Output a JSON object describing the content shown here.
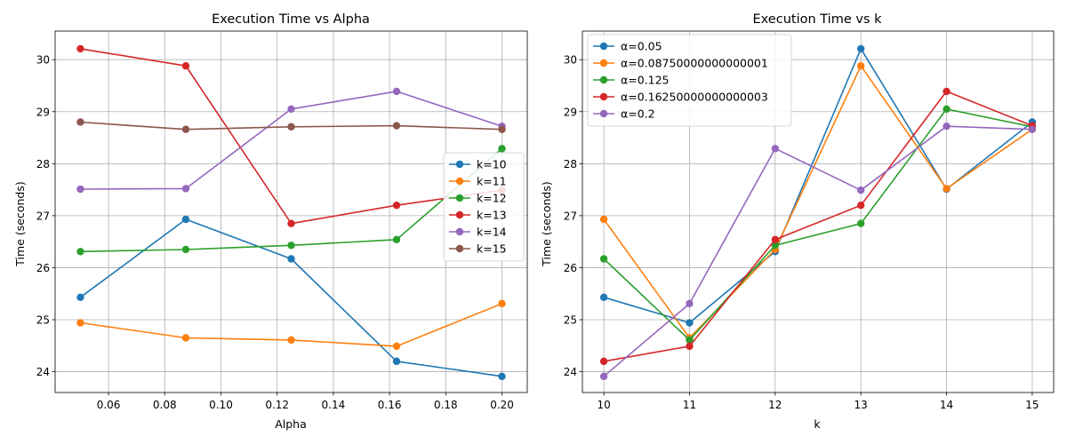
{
  "chart_data": [
    {
      "type": "line",
      "title": "Execution Time vs Alpha",
      "xlabel": "Alpha",
      "ylabel": "Time (seconds)",
      "xlim": [
        0.041,
        0.209
      ],
      "ylim": [
        23.6,
        30.55
      ],
      "xticks": [
        0.06,
        0.08,
        0.1,
        0.12,
        0.14,
        0.16,
        0.18,
        0.2
      ],
      "xtick_labels": [
        "0.06",
        "0.08",
        "0.10",
        "0.12",
        "0.14",
        "0.16",
        "0.18",
        "0.20"
      ],
      "yticks": [
        24,
        25,
        26,
        27,
        28,
        29,
        30
      ],
      "ytick_labels": [
        "24",
        "25",
        "26",
        "27",
        "28",
        "29",
        "30"
      ],
      "grid": true,
      "legend_position": "center-right",
      "x": [
        0.05,
        0.0875,
        0.125,
        0.1625,
        0.2
      ],
      "series": [
        {
          "name": "k=10",
          "color": "#1f77b4",
          "values": [
            25.43,
            26.93,
            26.17,
            24.2,
            23.91
          ]
        },
        {
          "name": "k=11",
          "color": "#ff7f0e",
          "values": [
            24.94,
            24.65,
            24.61,
            24.49,
            25.31
          ]
        },
        {
          "name": "k=12",
          "color": "#2ca02c",
          "values": [
            26.31,
            26.35,
            26.43,
            26.54,
            28.29
          ]
        },
        {
          "name": "k=13",
          "color": "#d62728",
          "values": [
            30.21,
            29.88,
            26.85,
            27.2,
            27.49
          ]
        },
        {
          "name": "k=14",
          "color": "#9467bd",
          "values": [
            27.51,
            27.52,
            29.05,
            29.39,
            28.72
          ]
        },
        {
          "name": "k=15",
          "color": "#8c564b",
          "values": [
            28.8,
            28.66,
            28.71,
            28.73,
            28.66
          ]
        }
      ]
    },
    {
      "type": "line",
      "title": "Execution Time vs k",
      "xlabel": "k",
      "ylabel": "Time (seconds)",
      "xlim": [
        9.75,
        15.25
      ],
      "ylim": [
        23.6,
        30.55
      ],
      "xticks": [
        10,
        11,
        12,
        13,
        14,
        15
      ],
      "xtick_labels": [
        "10",
        "11",
        "12",
        "13",
        "14",
        "15"
      ],
      "yticks": [
        24,
        25,
        26,
        27,
        28,
        29,
        30
      ],
      "ytick_labels": [
        "24",
        "25",
        "26",
        "27",
        "28",
        "29",
        "30"
      ],
      "grid": true,
      "legend_position": "upper-left",
      "x": [
        10,
        11,
        12,
        13,
        14,
        15
      ],
      "series": [
        {
          "name": "α=0.05",
          "color": "#1f77b4",
          "values": [
            25.43,
            24.94,
            26.31,
            30.21,
            27.51,
            28.8
          ]
        },
        {
          "name": "α=0.08750000000000001",
          "color": "#ff7f0e",
          "values": [
            26.93,
            24.65,
            26.35,
            29.88,
            27.52,
            28.66
          ]
        },
        {
          "name": "α=0.125",
          "color": "#2ca02c",
          "values": [
            26.17,
            24.61,
            26.43,
            26.85,
            29.05,
            28.71
          ]
        },
        {
          "name": "α=0.16250000000000003",
          "color": "#d62728",
          "values": [
            24.2,
            24.49,
            26.54,
            27.2,
            29.39,
            28.73
          ]
        },
        {
          "name": "α=0.2",
          "color": "#9467bd",
          "values": [
            23.91,
            25.31,
            28.29,
            27.49,
            28.72,
            28.66
          ]
        }
      ]
    }
  ]
}
